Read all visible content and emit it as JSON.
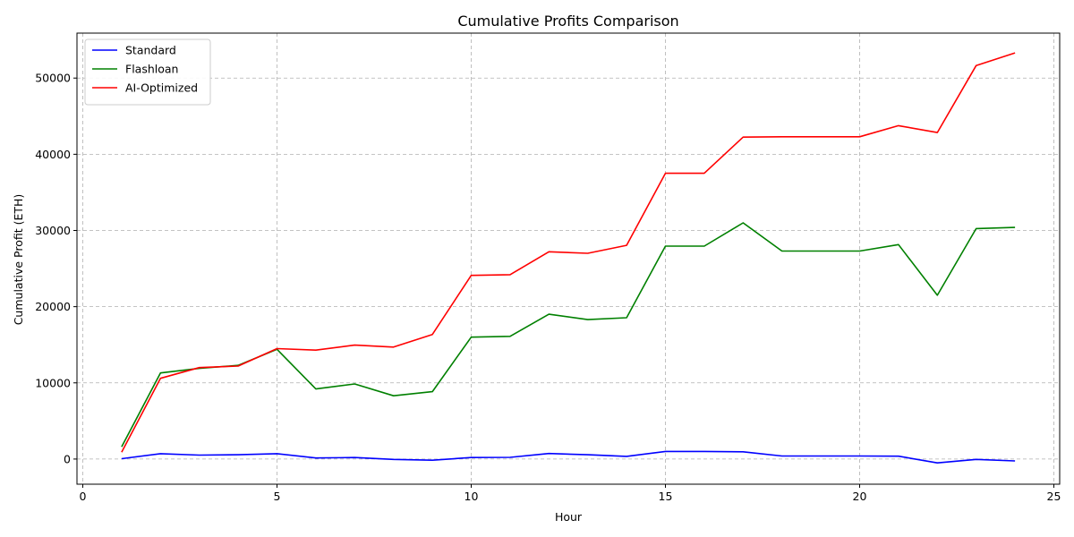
{
  "chart_data": {
    "type": "line",
    "title": "Cumulative Profits Comparison",
    "xlabel": "Hour",
    "ylabel": "Cumulative Profit (ETH)",
    "xlim": [
      -0.15,
      25.15
    ],
    "ylim": [
      -3300,
      55900
    ],
    "xticks": [
      0,
      5,
      10,
      15,
      20,
      25
    ],
    "yticks": [
      0,
      10000,
      20000,
      30000,
      40000,
      50000
    ],
    "grid": true,
    "legend_position": "top-left",
    "x": [
      1,
      2,
      3,
      4,
      5,
      6,
      7,
      8,
      9,
      10,
      11,
      12,
      13,
      14,
      15,
      16,
      17,
      18,
      19,
      20,
      21,
      22,
      23,
      24
    ],
    "series": [
      {
        "name": "Standard",
        "color": "#0000ff",
        "values": [
          50,
          700,
          520,
          560,
          700,
          140,
          200,
          -50,
          -150,
          200,
          220,
          730,
          560,
          350,
          1000,
          1000,
          950,
          400,
          400,
          400,
          380,
          -500,
          -50,
          -250
        ]
      },
      {
        "name": "Flashloan",
        "color": "#008000",
        "values": [
          1600,
          11300,
          11900,
          12300,
          14400,
          9200,
          9850,
          8300,
          8850,
          16000,
          16100,
          19000,
          18300,
          18550,
          27950,
          27950,
          31000,
          27300,
          27300,
          27300,
          28150,
          21500,
          30250,
          30400
        ]
      },
      {
        "name": "AI-Optimized",
        "color": "#ff0000",
        "values": [
          900,
          10600,
          12000,
          12200,
          14500,
          14300,
          14950,
          14700,
          16350,
          24100,
          24200,
          27200,
          27000,
          28050,
          37500,
          37500,
          42250,
          42300,
          42300,
          42300,
          43750,
          42850,
          51650,
          53300
        ]
      }
    ]
  }
}
